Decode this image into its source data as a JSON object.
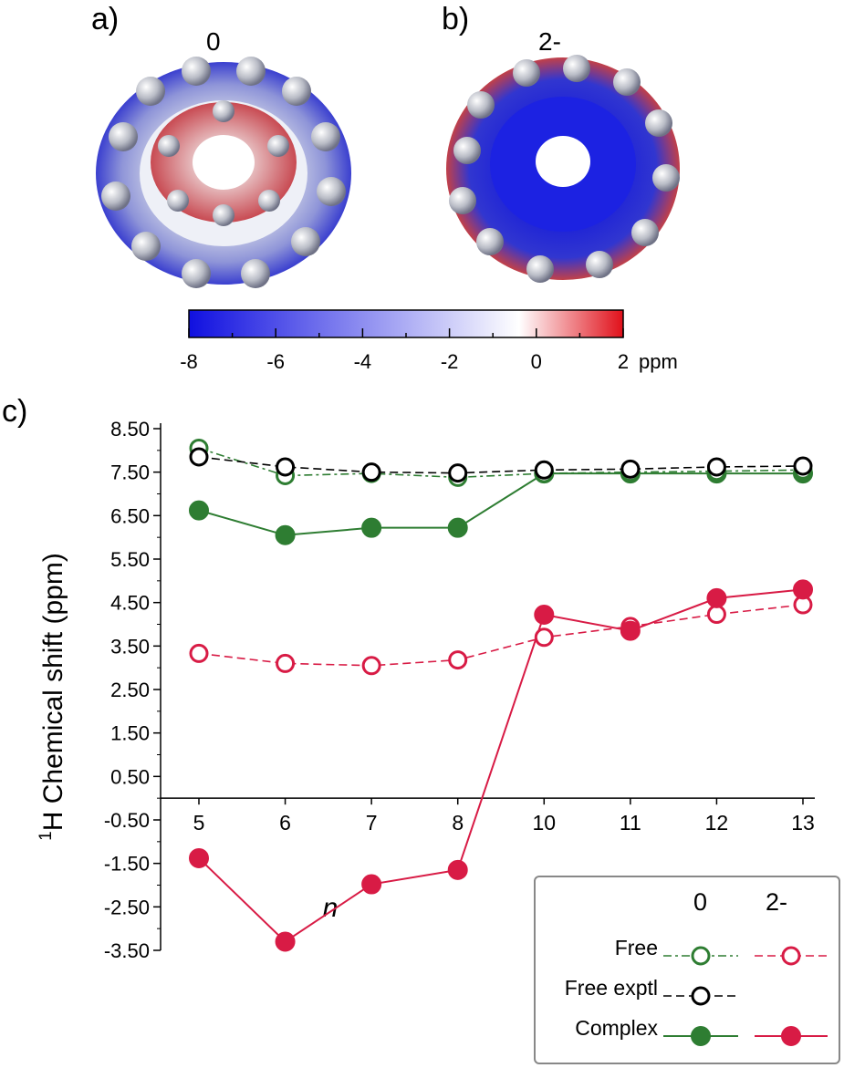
{
  "panels": {
    "a": {
      "label": "a)",
      "state": "0"
    },
    "b": {
      "label": "b)",
      "state": "2-"
    },
    "c": {
      "label": "c)"
    }
  },
  "colorbar": {
    "ticks": [
      "-8",
      "-6",
      "-4",
      "-2",
      "0",
      "2"
    ],
    "unit": "ppm",
    "range": [
      -8,
      2
    ],
    "colors": {
      "low": "#1010e0",
      "mid": "#ffffff",
      "high": "#e0101a"
    }
  },
  "chart_data": {
    "type": "line",
    "title": "",
    "xlabel": "n",
    "ylabel_sup": "1",
    "ylabel": "H Chemical shift (ppm)",
    "categories": [
      "5",
      "6",
      "7",
      "8",
      "10",
      "11",
      "12",
      "13"
    ],
    "ylim": [
      -3.5,
      8.5
    ],
    "yticks": [
      "8.50",
      "7.50",
      "6.50",
      "5.50",
      "4.50",
      "3.50",
      "2.50",
      "1.50",
      "0.50",
      "-0.50",
      "-1.50",
      "-2.50",
      "-3.50"
    ],
    "grid": false,
    "legend_position": "bottom-right",
    "series": [
      {
        "key": "free_0",
        "color": "#2e7d32",
        "marker": "open",
        "dash": "dashdot",
        "values": [
          8.05,
          7.42,
          7.47,
          7.38,
          7.47,
          7.5,
          7.52,
          7.55
        ]
      },
      {
        "key": "free_exptl_0",
        "color": "#000000",
        "marker": "open",
        "dash": "dashed",
        "values": [
          7.85,
          7.62,
          7.5,
          7.48,
          7.55,
          7.57,
          7.62,
          7.64
        ]
      },
      {
        "key": "complex_0",
        "color": "#2e7d32",
        "marker": "filled",
        "dash": "solid",
        "values": [
          6.62,
          6.05,
          6.22,
          6.22,
          7.47,
          7.47,
          7.47,
          7.47
        ]
      },
      {
        "key": "free_2m",
        "color": "#d81b45",
        "marker": "open",
        "dash": "dashed",
        "values": [
          3.33,
          3.1,
          3.05,
          3.18,
          3.7,
          3.95,
          4.23,
          4.45
        ]
      },
      {
        "key": "complex_2m",
        "color": "#d81b45",
        "marker": "filled",
        "dash": "solid",
        "values": [
          -1.38,
          -3.3,
          -1.98,
          -1.65,
          4.22,
          3.85,
          4.6,
          4.8
        ]
      }
    ]
  },
  "legend": {
    "col_0": "0",
    "col_2m": "2-",
    "rows": [
      {
        "label": "Free",
        "s0": "free_0",
        "s2": "free_2m"
      },
      {
        "label": "Free exptl",
        "s0": "free_exptl_0",
        "s2": ""
      },
      {
        "label": "Complex",
        "s0": "complex_0",
        "s2": "complex_2m"
      }
    ]
  }
}
